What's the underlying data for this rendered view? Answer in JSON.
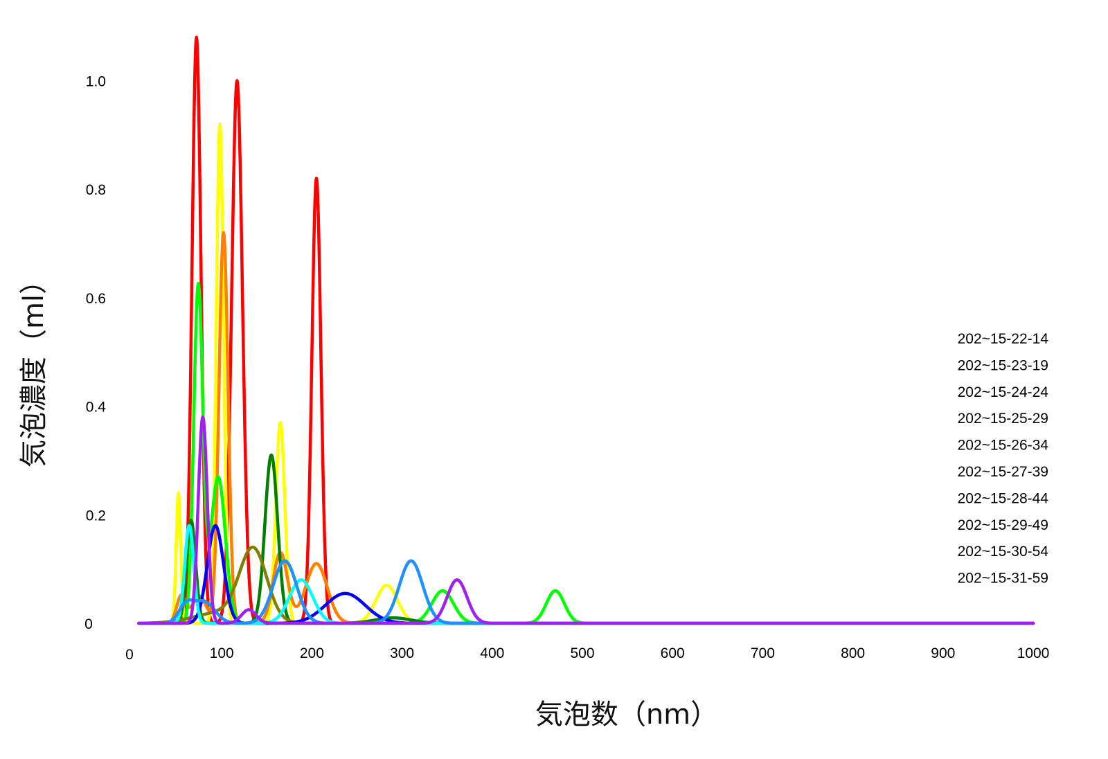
{
  "chart_data": {
    "type": "line",
    "title": "",
    "xlabel": "気泡数（nm）",
    "ylabel": "気泡濃度（ml）",
    "xlim": [
      0,
      1000
    ],
    "ylim": [
      0,
      1.1
    ],
    "x_ticks": [
      0,
      100,
      200,
      300,
      400,
      500,
      600,
      700,
      800,
      900,
      1000
    ],
    "x_tick_labels": [
      "0",
      "100",
      "200",
      "300",
      "400",
      "500",
      "600",
      "700",
      "800",
      "900",
      "1000"
    ],
    "y_ticks": [
      0,
      0.2,
      0.4,
      0.6,
      0.8,
      1.0
    ],
    "y_tick_labels": [
      "0",
      "0.2",
      "0.4",
      "0.6",
      "0.8",
      "1.0"
    ],
    "grid": false,
    "legend_position": "right",
    "legend": [
      "202~15-22-14",
      "202~15-23-19",
      "202~15-24-24",
      "202~15-25-29",
      "202~15-26-34",
      "202~15-27-39",
      "202~15-28-44",
      "202~15-29-49",
      "202~15-30-54",
      "202~15-31-59"
    ],
    "x_range": [
      8,
      1000
    ],
    "series": [
      {
        "color": "#ff0000",
        "peaks": [
          [
            72,
            1.08,
            5
          ],
          [
            117,
            1.0,
            6
          ],
          [
            205,
            0.82,
            5
          ]
        ]
      },
      {
        "color": "#ffff00",
        "peaks": [
          [
            52,
            0.24,
            2.5
          ],
          [
            98,
            0.92,
            4
          ],
          [
            165,
            0.37,
            5
          ],
          [
            283,
            0.07,
            12
          ]
        ]
      },
      {
        "color": "#ff8000",
        "peaks": [
          [
            55,
            0.05,
            5
          ],
          [
            75,
            0.05,
            8
          ],
          [
            102,
            0.72,
            5
          ],
          [
            165,
            0.13,
            8
          ],
          [
            205,
            0.11,
            12
          ]
        ]
      },
      {
        "color": "#00ff00",
        "peaks": [
          [
            74,
            0.62,
            5
          ],
          [
            96,
            0.27,
            8
          ],
          [
            345,
            0.06,
            12
          ],
          [
            470,
            0.06,
            10
          ]
        ]
      },
      {
        "color": "#008000",
        "peaks": [
          [
            66,
            0.19,
            5
          ],
          [
            155,
            0.31,
            7
          ],
          [
            290,
            0.01,
            20
          ]
        ]
      },
      {
        "color": "#808000",
        "peaks": [
          [
            100,
            0.02,
            30
          ],
          [
            135,
            0.13,
            15
          ]
        ]
      },
      {
        "color": "#0000ff",
        "peaks": [
          [
            93,
            0.18,
            9
          ],
          [
            237,
            0.055,
            22
          ]
        ]
      },
      {
        "color": "#00ffff",
        "peaks": [
          [
            64,
            0.18,
            5
          ],
          [
            188,
            0.08,
            13
          ]
        ]
      },
      {
        "color": "#1e90ff",
        "peaks": [
          [
            60,
            0.03,
            8
          ],
          [
            80,
            0.04,
            12
          ],
          [
            170,
            0.115,
            13
          ],
          [
            310,
            0.115,
            13
          ]
        ]
      },
      {
        "color": "#a020f0",
        "peaks": [
          [
            79,
            0.38,
            5
          ],
          [
            130,
            0.025,
            8
          ],
          [
            361,
            0.08,
            11
          ]
        ]
      }
    ]
  }
}
